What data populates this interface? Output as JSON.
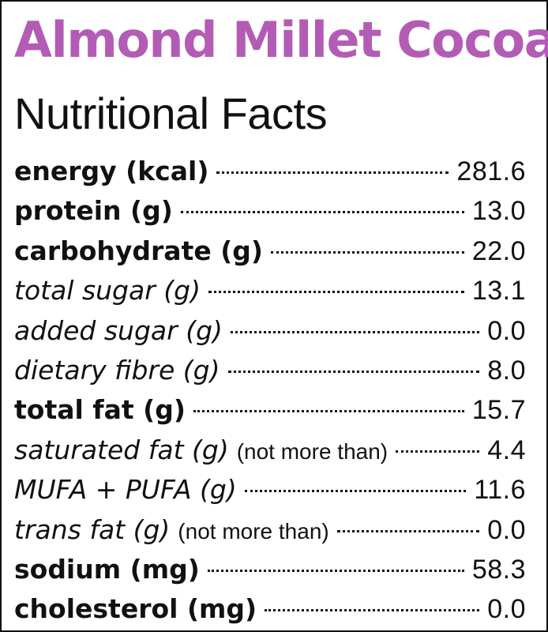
{
  "colors": {
    "title": "#b25cb6",
    "text": "#111111",
    "background": "#ffffff"
  },
  "title": "Almond Millet Cocoa",
  "subtitle": "Nutritional Facts",
  "rows": [
    {
      "label": "energy (kcal)",
      "qualifier": "",
      "value": "281.6",
      "style": "bold"
    },
    {
      "label": "protein (g)",
      "qualifier": "",
      "value": "13.0",
      "style": "bold"
    },
    {
      "label": "carbohydrate (g)",
      "qualifier": "",
      "value": "22.0",
      "style": "bold"
    },
    {
      "label": "total sugar (g)",
      "qualifier": "",
      "value": "13.1",
      "style": "italic"
    },
    {
      "label": "added sugar (g)",
      "qualifier": "",
      "value": "0.0",
      "style": "italic"
    },
    {
      "label": "dietary fibre (g)",
      "qualifier": "",
      "value": "8.0",
      "style": "italic"
    },
    {
      "label": "total fat (g)",
      "qualifier": "",
      "value": "15.7",
      "style": "bold"
    },
    {
      "label": "saturated fat (g)",
      "qualifier": "(not more than)",
      "value": "4.4",
      "style": "italic"
    },
    {
      "label": "MUFA + PUFA (g)",
      "qualifier": "",
      "value": "11.6",
      "style": "italic"
    },
    {
      "label": "trans fat (g)",
      "qualifier": "(not more than)",
      "value": "0.0",
      "style": "italic"
    },
    {
      "label": "sodium (mg)",
      "qualifier": "",
      "value": "58.3",
      "style": "bold"
    },
    {
      "label": "cholesterol (mg)",
      "qualifier": "",
      "value": "0.0",
      "style": "bold"
    }
  ]
}
